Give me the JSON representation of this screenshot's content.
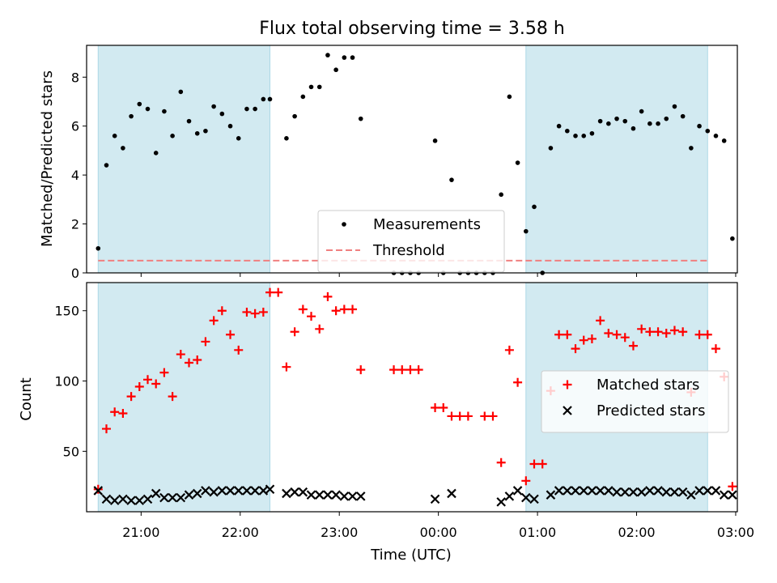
{
  "figure": {
    "title": "Flux total observing time = 3.58 h",
    "xlabel": "Time (UTC)",
    "xticks": [
      {
        "t": 21.0,
        "label": "21:00"
      },
      {
        "t": 22.0,
        "label": "22:00"
      },
      {
        "t": 23.0,
        "label": "23:00"
      },
      {
        "t": 24.0,
        "label": "00:00"
      },
      {
        "t": 25.0,
        "label": "01:00"
      },
      {
        "t": 26.0,
        "label": "02:00"
      },
      {
        "t": 27.0,
        "label": "03:00"
      }
    ],
    "shaded_color": "#add8e6"
  },
  "chart_data": [
    {
      "type": "scatter",
      "ylabel": "Matched/Predicted stars",
      "xlim": [
        "20:27",
        "03:01"
      ],
      "ylim": [
        0,
        9.3
      ],
      "yticks": [
        0,
        2,
        4,
        6,
        8
      ],
      "legend_position": "bottom-center",
      "shaded_regions": [
        [
          "20:34",
          "22:18"
        ],
        [
          "00:53",
          "02:43"
        ]
      ],
      "series": [
        {
          "name": "Measurements",
          "marker": "dot",
          "color": "#000000",
          "points": [
            [
              "20:34",
              1.0
            ],
            [
              "20:39",
              4.4
            ],
            [
              "20:44",
              5.6
            ],
            [
              "20:49",
              5.1
            ],
            [
              "20:54",
              6.4
            ],
            [
              "20:59",
              6.9
            ],
            [
              "21:04",
              6.7
            ],
            [
              "21:09",
              4.9
            ],
            [
              "21:14",
              6.6
            ],
            [
              "21:19",
              5.6
            ],
            [
              "21:24",
              7.4
            ],
            [
              "21:29",
              6.2
            ],
            [
              "21:34",
              5.7
            ],
            [
              "21:39",
              5.8
            ],
            [
              "21:44",
              6.8
            ],
            [
              "21:49",
              6.5
            ],
            [
              "21:54",
              6.0
            ],
            [
              "21:59",
              5.5
            ],
            [
              "22:04",
              6.7
            ],
            [
              "22:09",
              6.7
            ],
            [
              "22:14",
              7.1
            ],
            [
              "22:18",
              7.1
            ],
            [
              "22:28",
              5.5
            ],
            [
              "22:33",
              6.4
            ],
            [
              "22:38",
              7.2
            ],
            [
              "22:43",
              7.6
            ],
            [
              "22:48",
              7.6
            ],
            [
              "22:53",
              8.9
            ],
            [
              "22:58",
              8.3
            ],
            [
              "23:03",
              8.8
            ],
            [
              "23:08",
              8.8
            ],
            [
              "23:13",
              6.3
            ],
            [
              "23:33",
              0.0
            ],
            [
              "23:38",
              0.0
            ],
            [
              "23:43",
              0.0
            ],
            [
              "23:48",
              0.0
            ],
            [
              "23:58",
              5.4
            ],
            [
              "00:03",
              0.0
            ],
            [
              "00:08",
              3.8
            ],
            [
              "00:13",
              0.0
            ],
            [
              "00:18",
              0.0
            ],
            [
              "00:23",
              0.0
            ],
            [
              "00:28",
              0.0
            ],
            [
              "00:33",
              0.0
            ],
            [
              "00:38",
              3.2
            ],
            [
              "00:43",
              7.2
            ],
            [
              "00:48",
              4.5
            ],
            [
              "00:53",
              1.7
            ],
            [
              "00:58",
              2.7
            ],
            [
              "01:03",
              0.0
            ],
            [
              "01:08",
              5.1
            ],
            [
              "01:13",
              6.0
            ],
            [
              "01:18",
              5.8
            ],
            [
              "01:23",
              5.6
            ],
            [
              "01:28",
              5.6
            ],
            [
              "01:33",
              5.7
            ],
            [
              "01:38",
              6.2
            ],
            [
              "01:43",
              6.1
            ],
            [
              "01:48",
              6.3
            ],
            [
              "01:53",
              6.2
            ],
            [
              "01:58",
              5.9
            ],
            [
              "02:03",
              6.6
            ],
            [
              "02:08",
              6.1
            ],
            [
              "02:13",
              6.1
            ],
            [
              "02:18",
              6.3
            ],
            [
              "02:23",
              6.8
            ],
            [
              "02:28",
              6.4
            ],
            [
              "02:33",
              5.1
            ],
            [
              "02:38",
              6.0
            ],
            [
              "02:43",
              5.8
            ],
            [
              "02:48",
              5.6
            ],
            [
              "02:53",
              5.4
            ],
            [
              "02:58",
              1.4
            ]
          ]
        },
        {
          "name": "Threshold",
          "type": "line",
          "style": "dashed",
          "color": "#f08080",
          "value": 0.5
        }
      ]
    },
    {
      "type": "scatter",
      "ylabel": "Count",
      "xlim": [
        "20:27",
        "03:01"
      ],
      "ylim": [
        7,
        170
      ],
      "yticks": [
        50,
        100,
        150
      ],
      "legend_position": "center-right",
      "shaded_regions": [
        [
          "20:34",
          "22:18"
        ],
        [
          "00:53",
          "02:43"
        ]
      ],
      "series": [
        {
          "name": "Matched stars",
          "marker": "plus",
          "color": "#ff0000",
          "points": [
            [
              "20:34",
              23
            ],
            [
              "20:39",
              66
            ],
            [
              "20:44",
              78
            ],
            [
              "20:49",
              77
            ],
            [
              "20:54",
              89
            ],
            [
              "20:59",
              96
            ],
            [
              "21:04",
              101
            ],
            [
              "21:09",
              98
            ],
            [
              "21:14",
              106
            ],
            [
              "21:19",
              89
            ],
            [
              "21:24",
              119
            ],
            [
              "21:29",
              113
            ],
            [
              "21:34",
              115
            ],
            [
              "21:39",
              128
            ],
            [
              "21:44",
              143
            ],
            [
              "21:49",
              150
            ],
            [
              "21:54",
              133
            ],
            [
              "21:59",
              122
            ],
            [
              "22:04",
              149
            ],
            [
              "22:09",
              148
            ],
            [
              "22:14",
              149
            ],
            [
              "22:18",
              163
            ],
            [
              "22:23",
              163
            ],
            [
              "22:28",
              110
            ],
            [
              "22:33",
              135
            ],
            [
              "22:38",
              151
            ],
            [
              "22:43",
              146
            ],
            [
              "22:48",
              137
            ],
            [
              "22:53",
              160
            ],
            [
              "22:58",
              150
            ],
            [
              "23:03",
              151
            ],
            [
              "23:08",
              151
            ],
            [
              "23:13",
              108
            ],
            [
              "23:33",
              108
            ],
            [
              "23:38",
              108
            ],
            [
              "23:43",
              108
            ],
            [
              "23:48",
              108
            ],
            [
              "23:58",
              81
            ],
            [
              "00:03",
              81
            ],
            [
              "00:08",
              75
            ],
            [
              "00:13",
              75
            ],
            [
              "00:18",
              75
            ],
            [
              "00:28",
              75
            ],
            [
              "00:33",
              75
            ],
            [
              "00:38",
              42
            ],
            [
              "00:43",
              122
            ],
            [
              "00:48",
              99
            ],
            [
              "00:53",
              29
            ],
            [
              "00:58",
              41
            ],
            [
              "01:03",
              41
            ],
            [
              "01:08",
              93
            ],
            [
              "01:13",
              133
            ],
            [
              "01:18",
              133
            ],
            [
              "01:23",
              123
            ],
            [
              "01:28",
              129
            ],
            [
              "01:33",
              130
            ],
            [
              "01:38",
              143
            ],
            [
              "01:43",
              134
            ],
            [
              "01:48",
              133
            ],
            [
              "01:53",
              131
            ],
            [
              "01:58",
              125
            ],
            [
              "02:03",
              137
            ],
            [
              "02:08",
              135
            ],
            [
              "02:13",
              135
            ],
            [
              "02:18",
              134
            ],
            [
              "02:23",
              136
            ],
            [
              "02:28",
              135
            ],
            [
              "02:33",
              92
            ],
            [
              "02:38",
              133
            ],
            [
              "02:43",
              133
            ],
            [
              "02:48",
              123
            ],
            [
              "02:53",
              103
            ],
            [
              "02:58",
              25
            ]
          ]
        },
        {
          "name": "Predicted stars",
          "marker": "x",
          "color": "#000000",
          "points": [
            [
              "20:34",
              22
            ],
            [
              "20:39",
              16
            ],
            [
              "20:44",
              15
            ],
            [
              "20:49",
              16
            ],
            [
              "20:54",
              15
            ],
            [
              "20:59",
              15
            ],
            [
              "21:04",
              16
            ],
            [
              "21:09",
              20
            ],
            [
              "21:14",
              17
            ],
            [
              "21:19",
              17
            ],
            [
              "21:24",
              17
            ],
            [
              "21:29",
              19
            ],
            [
              "21:34",
              20
            ],
            [
              "21:39",
              22
            ],
            [
              "21:44",
              21
            ],
            [
              "21:49",
              22
            ],
            [
              "21:54",
              22
            ],
            [
              "21:59",
              22
            ],
            [
              "22:04",
              22
            ],
            [
              "22:09",
              22
            ],
            [
              "22:14",
              22
            ],
            [
              "22:18",
              23
            ],
            [
              "22:28",
              20
            ],
            [
              "22:33",
              21
            ],
            [
              "22:38",
              21
            ],
            [
              "22:43",
              19
            ],
            [
              "22:48",
              19
            ],
            [
              "22:53",
              19
            ],
            [
              "22:58",
              19
            ],
            [
              "23:03",
              18
            ],
            [
              "23:08",
              18
            ],
            [
              "23:13",
              18
            ],
            [
              "23:58",
              16
            ],
            [
              "00:08",
              20
            ],
            [
              "00:38",
              14
            ],
            [
              "00:43",
              18
            ],
            [
              "00:48",
              22
            ],
            [
              "00:53",
              17
            ],
            [
              "00:58",
              16
            ],
            [
              "01:08",
              19
            ],
            [
              "01:13",
              22
            ],
            [
              "01:18",
              22
            ],
            [
              "01:23",
              22
            ],
            [
              "01:28",
              22
            ],
            [
              "01:33",
              22
            ],
            [
              "01:38",
              22
            ],
            [
              "01:43",
              22
            ],
            [
              "01:48",
              21
            ],
            [
              "01:53",
              21
            ],
            [
              "01:58",
              21
            ],
            [
              "02:03",
              21
            ],
            [
              "02:08",
              22
            ],
            [
              "02:13",
              22
            ],
            [
              "02:18",
              21
            ],
            [
              "02:23",
              21
            ],
            [
              "02:28",
              21
            ],
            [
              "02:33",
              19
            ],
            [
              "02:38",
              22
            ],
            [
              "02:43",
              22
            ],
            [
              "02:48",
              22
            ],
            [
              "02:53",
              19
            ],
            [
              "02:58",
              19
            ]
          ]
        }
      ]
    }
  ]
}
